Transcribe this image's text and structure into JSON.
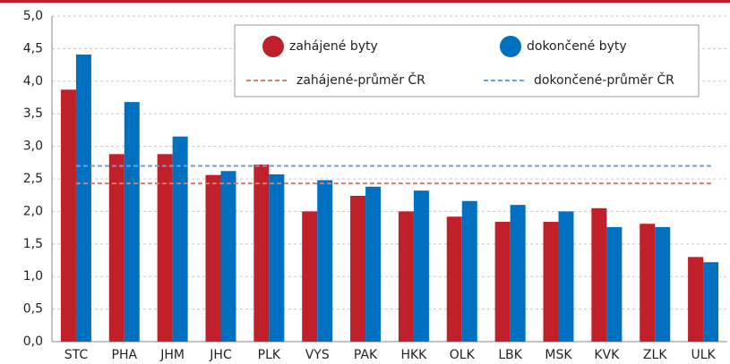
{
  "chart_data": {
    "type": "bar",
    "categories": [
      "STC",
      "PHA",
      "JHM",
      "JHC",
      "PLK",
      "VYS",
      "PAK",
      "HKK",
      "OLK",
      "LBK",
      "MSK",
      "KVK",
      "ZLK",
      "ULK"
    ],
    "series": [
      {
        "name": "zahájené byty",
        "color": "#c0202a",
        "values": [
          3.87,
          2.88,
          2.88,
          2.56,
          2.72,
          2.0,
          2.24,
          2.0,
          1.92,
          1.84,
          1.84,
          2.05,
          1.81,
          1.3
        ]
      },
      {
        "name": "dokončené byty",
        "color": "#0070c0",
        "values": [
          4.41,
          3.68,
          3.15,
          2.62,
          2.57,
          2.48,
          2.38,
          2.32,
          2.16,
          2.1,
          2.0,
          1.76,
          1.76,
          1.22
        ]
      }
    ],
    "reference_lines": [
      {
        "name": "zahájené-průměr ČR",
        "color": "#e07a5f",
        "value": 2.43
      },
      {
        "name": "dokončené-průměr ČR",
        "color": "#6c9fd6",
        "value": 2.7
      }
    ],
    "ylim": [
      0,
      5
    ],
    "yticks": [
      {
        "value": 0,
        "label": "0,0"
      },
      {
        "value": 0.5,
        "label": "0,5"
      },
      {
        "value": 1,
        "label": "1,0"
      },
      {
        "value": 1.5,
        "label": "1,5"
      },
      {
        "value": 2,
        "label": "2,0"
      },
      {
        "value": 2.5,
        "label": "2,5"
      },
      {
        "value": 3,
        "label": "3,0"
      },
      {
        "value": 3.5,
        "label": "3,5"
      },
      {
        "value": 4,
        "label": "4,0"
      },
      {
        "value": 4.5,
        "label": "4,5"
      },
      {
        "value": 5,
        "label": "5,0"
      }
    ],
    "grid": true
  }
}
